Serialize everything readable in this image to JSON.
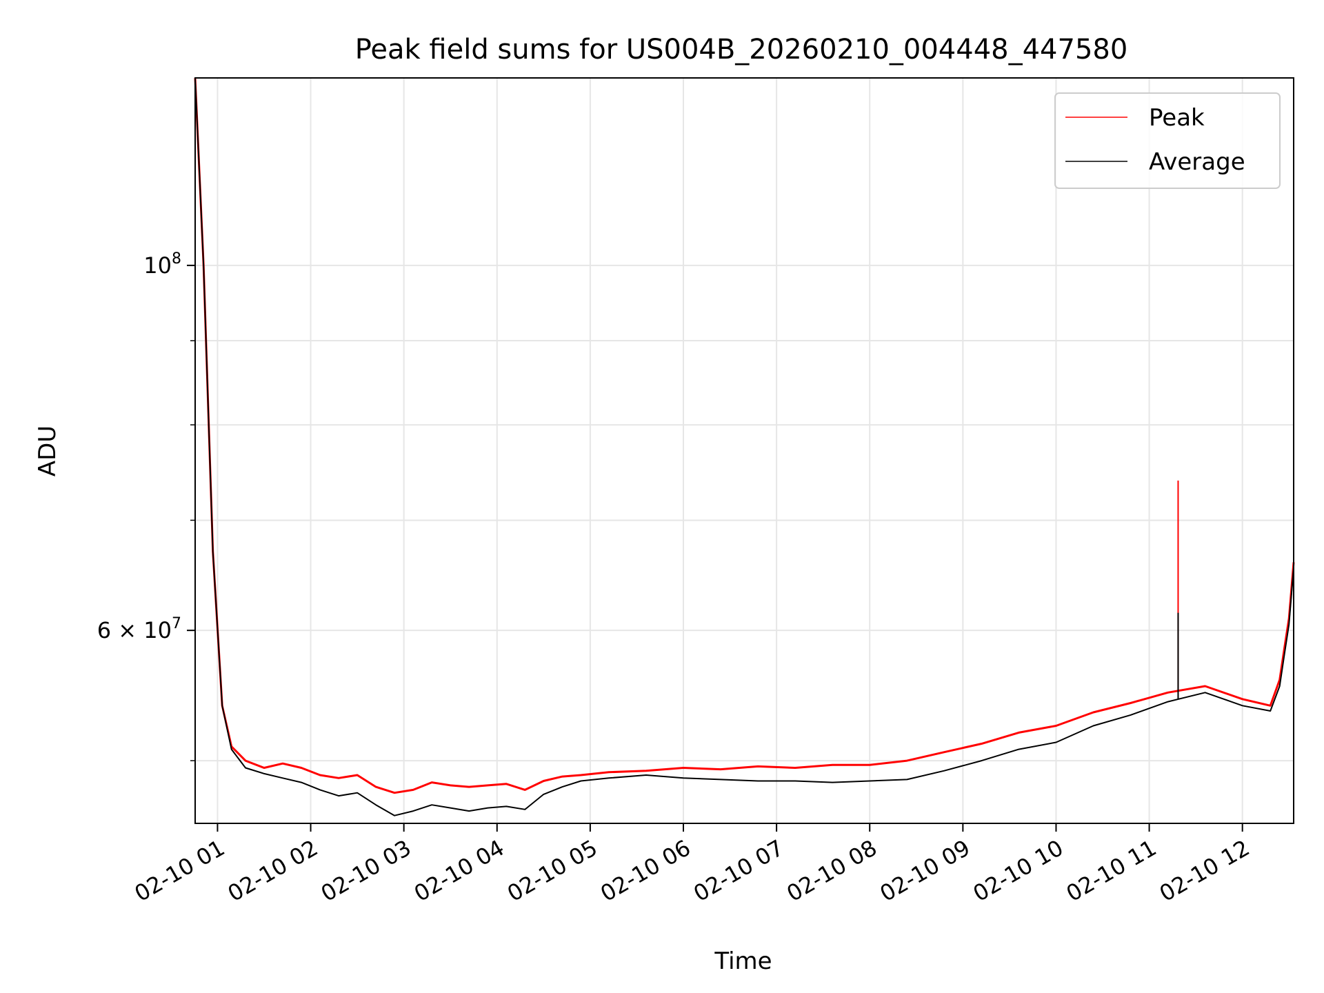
{
  "chart_data": {
    "type": "line",
    "title": "Peak field sums for US004B_20260210_004448_447580",
    "xlabel": "Time",
    "ylabel": "ADU",
    "x_ticks": [
      "02-10 01",
      "02-10 02",
      "02-10 03",
      "02-10 04",
      "02-10 05",
      "02-10 06",
      "02-10 07",
      "02-10 08",
      "02-10 09",
      "02-10 10",
      "02-10 11",
      "02-10 12"
    ],
    "y_ticks": [
      {
        "value": 100000000,
        "base": "10",
        "exp": "8",
        "mant": ""
      },
      {
        "value": 60000000,
        "base": "10",
        "exp": "7",
        "mant": "6 × "
      }
    ],
    "y_scale": "log",
    "ylim": [
      45800000,
      130000000
    ],
    "xlim_hours": [
      0.76,
      12.55
    ],
    "grid": true,
    "legend_position": "top-right",
    "x_values_hours": [
      0.76,
      0.85,
      0.95,
      1.05,
      1.15,
      1.3,
      1.5,
      1.7,
      1.9,
      2.1,
      2.3,
      2.5,
      2.7,
      2.9,
      3.1,
      3.3,
      3.5,
      3.7,
      3.9,
      4.1,
      4.3,
      4.5,
      4.7,
      4.9,
      5.2,
      5.6,
      6.0,
      6.4,
      6.8,
      7.2,
      7.6,
      8.0,
      8.4,
      8.8,
      9.2,
      9.6,
      10.0,
      10.4,
      10.8,
      11.2,
      11.6,
      12.0,
      12.3,
      12.4,
      12.45,
      12.5,
      12.55
    ],
    "series": [
      {
        "name": "Peak",
        "color": "#ff0000",
        "values": [
          130000000,
          100000000,
          67000000,
          54000000,
          51000000,
          50000000,
          49500000,
          49800000,
          49500000,
          49000000,
          48800000,
          49000000,
          48200000,
          47800000,
          48000000,
          48500000,
          48300000,
          48200000,
          48300000,
          48400000,
          48000000,
          48600000,
          48900000,
          49000000,
          49200000,
          49300000,
          49500000,
          49400000,
          49600000,
          49500000,
          49700000,
          49700000,
          50000000,
          50600000,
          51200000,
          52000000,
          52500000,
          53500000,
          54200000,
          55000000,
          55500000,
          54500000,
          54000000,
          56000000,
          58500000,
          61000000,
          66000000
        ]
      },
      {
        "name": "Average",
        "color": "#000000",
        "values": [
          130000000,
          100000000,
          67000000,
          54000000,
          50800000,
          49500000,
          49100000,
          48800000,
          48500000,
          48000000,
          47600000,
          47800000,
          47000000,
          46300000,
          46600000,
          47000000,
          46800000,
          46600000,
          46800000,
          46900000,
          46700000,
          47700000,
          48200000,
          48600000,
          48800000,
          49000000,
          48800000,
          48700000,
          48600000,
          48600000,
          48500000,
          48600000,
          48700000,
          49300000,
          50000000,
          50800000,
          51300000,
          52500000,
          53300000,
          54300000,
          55000000,
          54000000,
          53600000,
          55500000,
          58000000,
          60500000,
          65500000
        ]
      }
    ],
    "annotations": [
      {
        "type": "spike",
        "x_hour": 11.31,
        "series": "Peak",
        "value": 74000000
      },
      {
        "type": "spike",
        "x_hour": 11.31,
        "series": "Average",
        "value": 61500000
      }
    ]
  }
}
